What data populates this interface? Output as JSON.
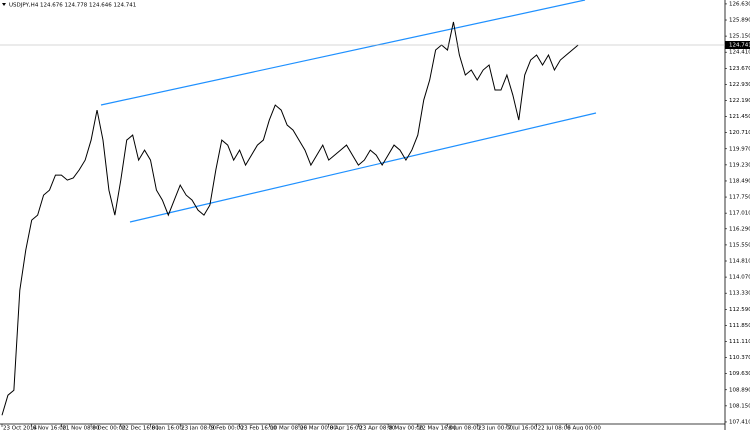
{
  "chart_data": {
    "type": "line",
    "title": "USDJPY,H4 124.676 124.778 124.646 124.741",
    "categories": [
      "23 Oct 2014",
      null,
      null,
      null,
      null,
      "6 Nov 16:00",
      null,
      null,
      null,
      null,
      "21 Nov 08:00",
      null,
      null,
      null,
      null,
      "8 Dec 00:00",
      null,
      null,
      null,
      null,
      "22 Dec 16:00",
      null,
      null,
      null,
      null,
      "8 Jan 16:00",
      null,
      null,
      null,
      null,
      "23 Jan 08:00",
      null,
      null,
      null,
      null,
      "9 Feb 00:00",
      null,
      null,
      null,
      null,
      "23 Feb 16:00",
      null,
      null,
      null,
      null,
      "10 Mar 08:00",
      null,
      null,
      null,
      null,
      "26 Mar 00:00",
      null,
      null,
      null,
      null,
      "8 Apr 16:00",
      null,
      null,
      null,
      null,
      "23 Apr 08:00",
      null,
      null,
      null,
      null,
      "8 May 00:00",
      null,
      null,
      null,
      null,
      "22 May 16:00",
      null,
      null,
      null,
      null,
      "8 Jun 08:00",
      null,
      null,
      null,
      null,
      "23 Jun 00:00",
      null,
      null,
      null,
      null,
      "7 Jul 16:00",
      null,
      null,
      null,
      null,
      "22 Jul 08:00",
      null,
      null,
      null,
      null,
      "6 Aug 00:00",
      null,
      null
    ],
    "values": [
      107.72,
      108.64,
      108.87,
      113.47,
      115.31,
      116.69,
      116.92,
      117.84,
      118.07,
      118.76,
      118.76,
      118.53,
      118.63,
      119.0,
      119.45,
      120.37,
      121.75,
      120.37,
      118.07,
      116.92,
      118.53,
      120.37,
      120.6,
      119.45,
      119.91,
      119.45,
      118.07,
      117.61,
      116.92,
      117.61,
      118.3,
      117.84,
      117.61,
      117.15,
      116.92,
      117.38,
      119.0,
      120.37,
      120.14,
      119.45,
      119.91,
      119.22,
      119.68,
      120.14,
      120.37,
      121.29,
      121.98,
      121.75,
      121.06,
      120.83,
      120.37,
      119.91,
      119.22,
      119.68,
      120.14,
      119.45,
      119.68,
      119.91,
      120.14,
      119.68,
      119.22,
      119.45,
      119.91,
      119.68,
      119.22,
      119.68,
      120.14,
      119.91,
      119.45,
      119.91,
      120.6,
      122.21,
      123.13,
      124.51,
      124.74,
      124.51,
      125.8,
      124.28,
      123.36,
      123.59,
      123.13,
      123.59,
      123.82,
      122.67,
      122.67,
      123.36,
      122.44,
      121.29,
      123.36,
      124.05,
      124.28,
      123.82,
      124.28,
      123.59,
      124.05,
      124.28,
      124.51,
      124.74
    ],
    "color": "#000000",
    "last_price": 124.741,
    "ylim": [
      107.04,
      126.81
    ],
    "yticks": [
      {
        "value": 126.63,
        "label": "126.630"
      },
      {
        "value": 125.89,
        "label": "125.890"
      },
      {
        "value": 125.15,
        "label": "125.150"
      },
      {
        "value": 124.41,
        "label": "124.410"
      },
      {
        "value": 123.67,
        "label": "123.670"
      },
      {
        "value": 122.93,
        "label": "122.930"
      },
      {
        "value": 122.19,
        "label": "122.190"
      },
      {
        "value": 121.45,
        "label": "121.450"
      },
      {
        "value": 120.71,
        "label": "120.710"
      },
      {
        "value": 119.97,
        "label": "119.970"
      },
      {
        "value": 119.23,
        "label": "119.230"
      },
      {
        "value": 118.49,
        "label": "118.490"
      },
      {
        "value": 117.75,
        "label": "117.750"
      },
      {
        "value": 117.01,
        "label": "117.010"
      },
      {
        "value": 116.29,
        "label": "116.290"
      },
      {
        "value": 115.55,
        "label": "115.550"
      },
      {
        "value": 114.81,
        "label": "114.810"
      },
      {
        "value": 114.07,
        "label": "114.070"
      },
      {
        "value": 113.33,
        "label": "113.330"
      },
      {
        "value": 112.59,
        "label": "112.590"
      },
      {
        "value": 111.85,
        "label": "111.850"
      },
      {
        "value": 111.11,
        "label": "111.110"
      },
      {
        "value": 110.37,
        "label": "110.370"
      },
      {
        "value": 109.63,
        "label": "109.630"
      },
      {
        "value": 108.89,
        "label": "108.890"
      },
      {
        "value": 108.15,
        "label": "108.150"
      },
      {
        "value": 107.41,
        "label": "107.410"
      }
    ]
  }
}
